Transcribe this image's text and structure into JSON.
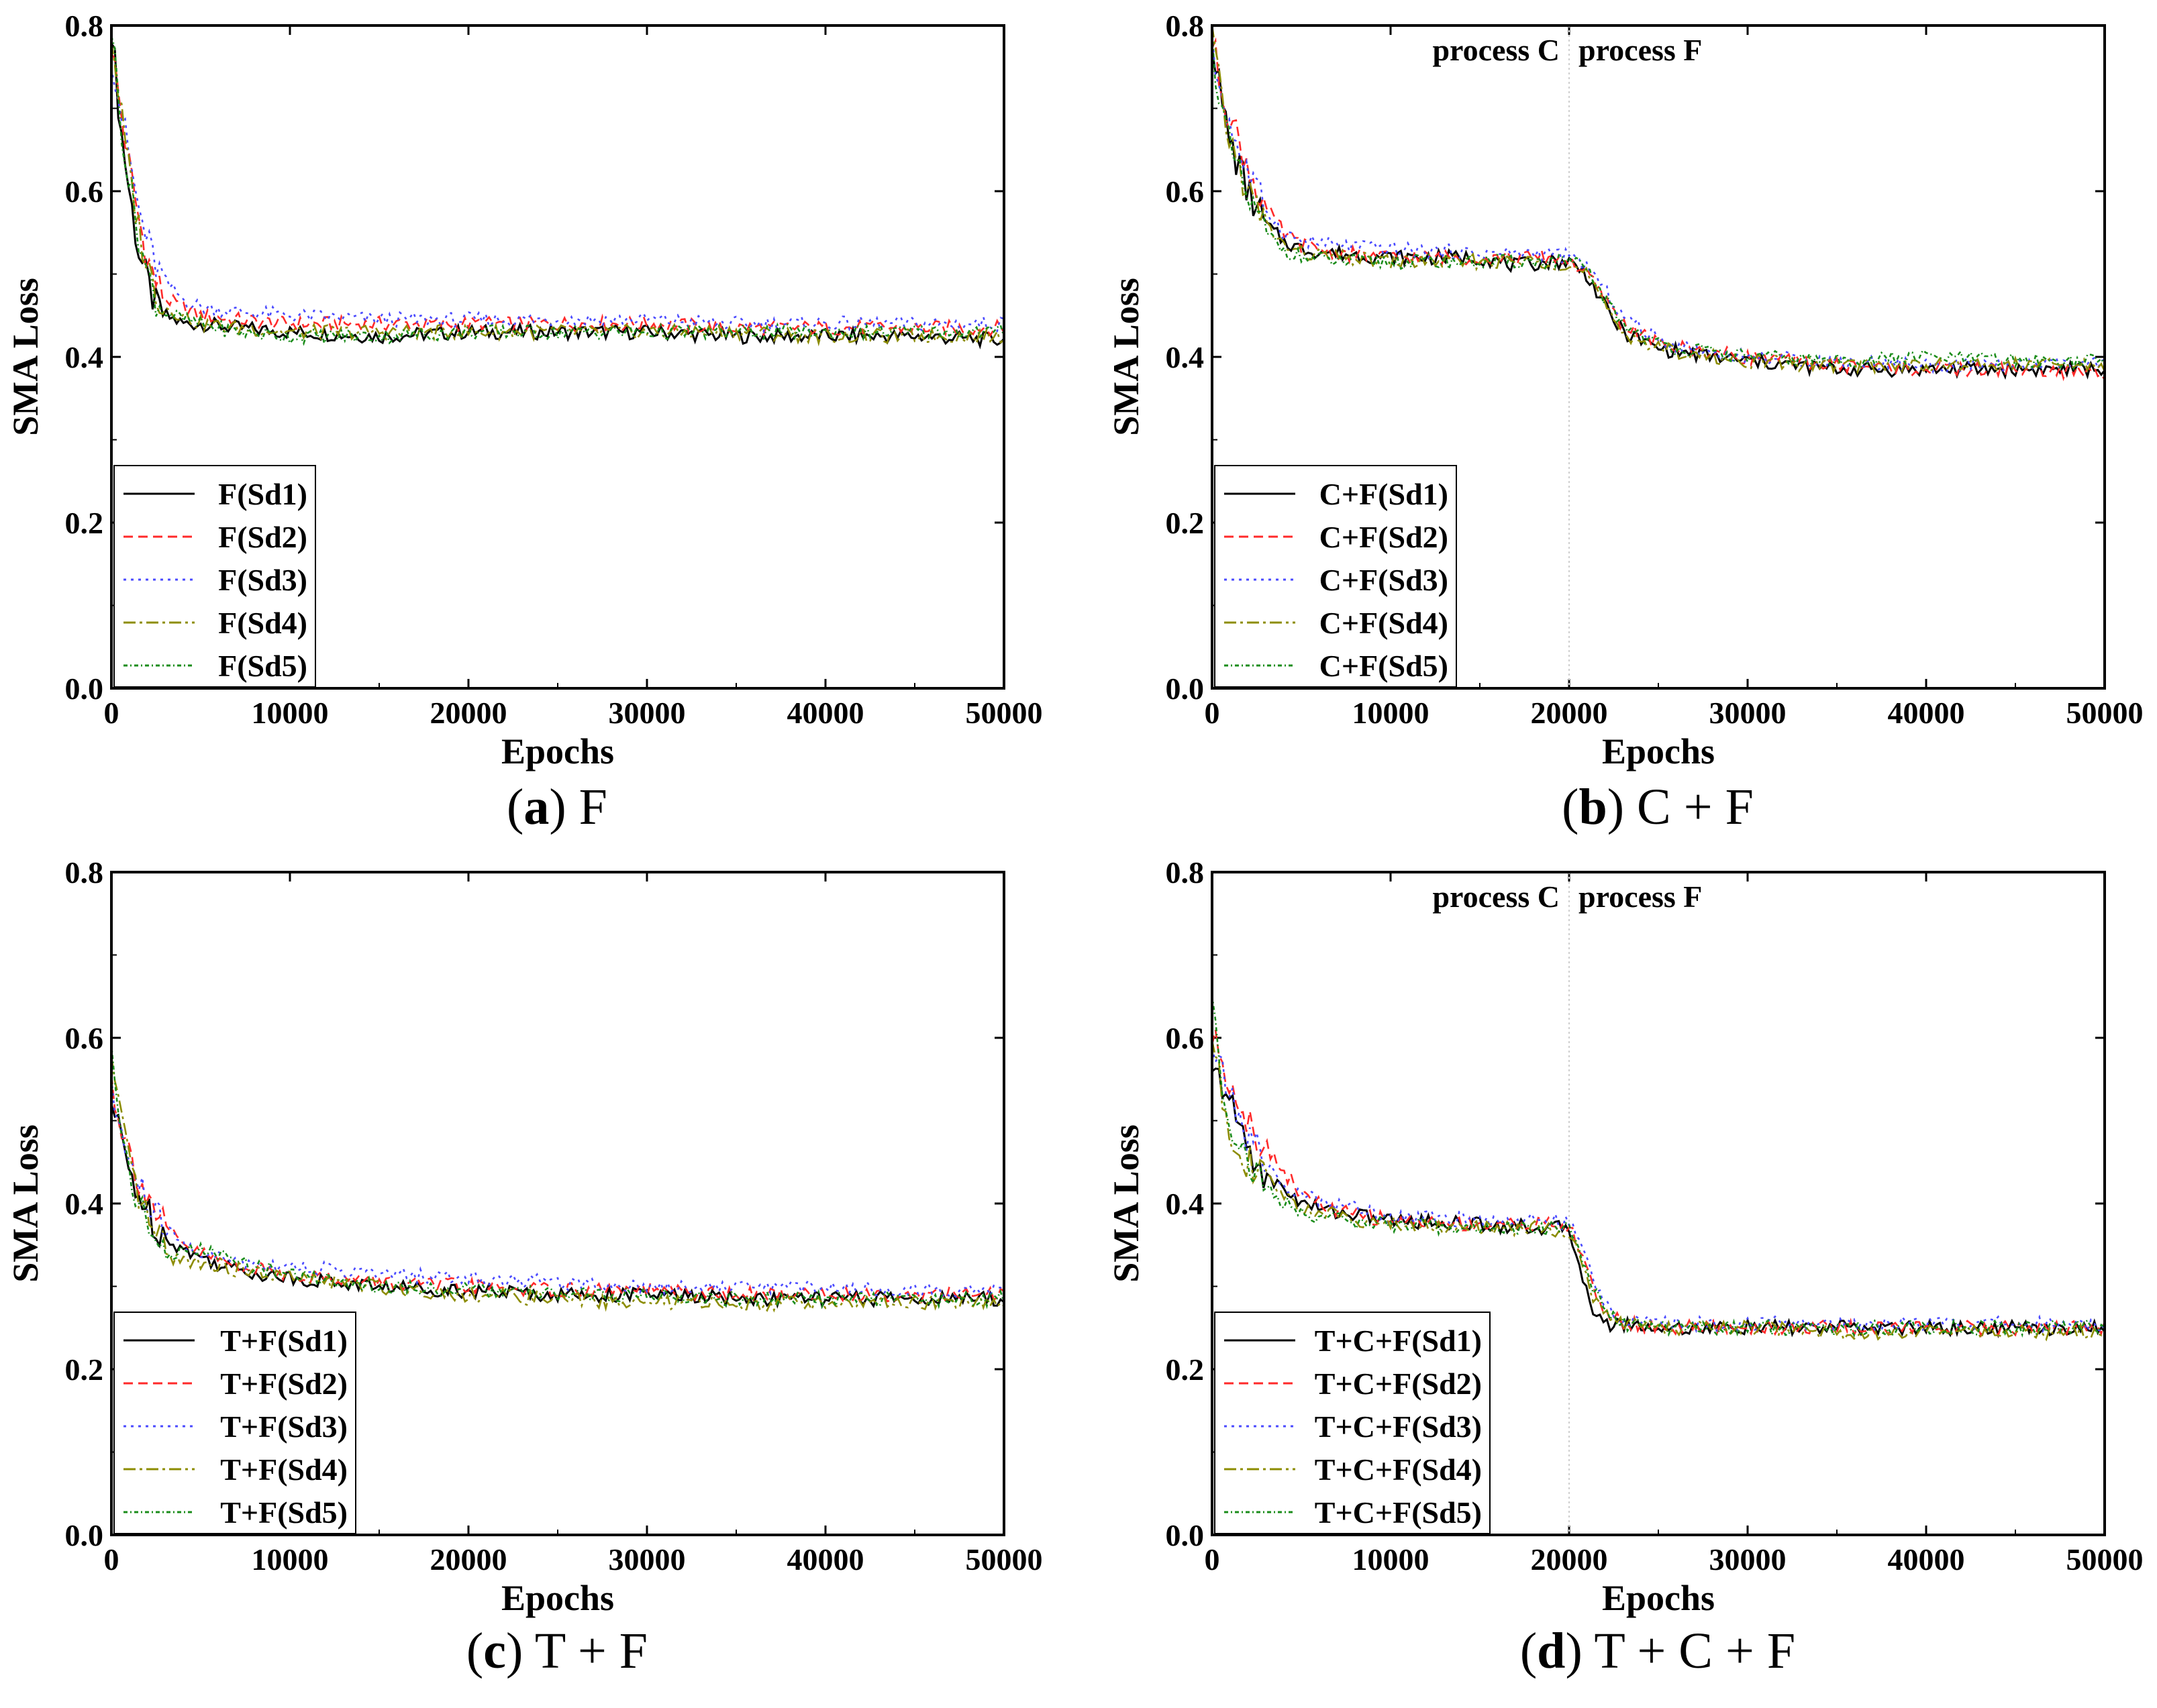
{
  "figure": {
    "colors": {
      "Sd1": "#000000",
      "Sd2": "#ff2a2a",
      "Sd3": "#4a4aff",
      "Sd4": "#8c8c00",
      "Sd5": "#1a8c1a"
    }
  },
  "chart_data": [
    {
      "type": "line",
      "panel_letter": "a",
      "caption_text": "F",
      "xlabel": "Epochs",
      "ylabel": "SMA Loss",
      "xlim": [
        0,
        50000
      ],
      "ylim": [
        0.0,
        0.8
      ],
      "xticks": [
        "0",
        "10000",
        "20000",
        "30000",
        "40000",
        "50000"
      ],
      "yticks": [
        "0.0",
        "0.2",
        "0.4",
        "0.6",
        "0.8"
      ],
      "legend_position": "bottom-left",
      "annotations": [],
      "series": [
        {
          "name": "F(Sd1)",
          "x": [
            0,
            500,
            1000,
            1500,
            2000,
            2500,
            3000,
            4000,
            5000,
            7000,
            10000,
            15000,
            20000,
            25000,
            30000,
            35000,
            40000,
            45000,
            50000
          ],
          "values": [
            0.8,
            0.68,
            0.6,
            0.53,
            0.49,
            0.46,
            0.45,
            0.44,
            0.44,
            0.435,
            0.43,
            0.425,
            0.43,
            0.43,
            0.43,
            0.425,
            0.425,
            0.425,
            0.42
          ]
        },
        {
          "name": "F(Sd2)",
          "x": [
            0,
            500,
            1000,
            1500,
            2000,
            2500,
            3000,
            4000,
            5000,
            7000,
            10000,
            15000,
            20000,
            25000,
            30000,
            35000,
            40000,
            45000,
            50000
          ],
          "values": [
            0.78,
            0.7,
            0.63,
            0.57,
            0.52,
            0.49,
            0.47,
            0.46,
            0.45,
            0.445,
            0.44,
            0.44,
            0.44,
            0.44,
            0.44,
            0.435,
            0.435,
            0.435,
            0.435
          ]
        },
        {
          "name": "F(Sd3)",
          "x": [
            0,
            500,
            1000,
            1500,
            2000,
            2500,
            3000,
            4000,
            5000,
            7000,
            10000,
            15000,
            20000,
            25000,
            30000,
            35000,
            40000,
            45000,
            50000
          ],
          "values": [
            0.77,
            0.7,
            0.64,
            0.58,
            0.54,
            0.51,
            0.49,
            0.47,
            0.46,
            0.455,
            0.45,
            0.445,
            0.445,
            0.445,
            0.445,
            0.44,
            0.44,
            0.44,
            0.44
          ]
        },
        {
          "name": "F(Sd4)",
          "x": [
            0,
            500,
            1000,
            1500,
            2000,
            2500,
            3000,
            4000,
            5000,
            7000,
            10000,
            15000,
            20000,
            25000,
            30000,
            35000,
            40000,
            45000,
            50000
          ],
          "values": [
            0.79,
            0.7,
            0.62,
            0.56,
            0.51,
            0.48,
            0.46,
            0.45,
            0.44,
            0.435,
            0.43,
            0.43,
            0.43,
            0.43,
            0.43,
            0.43,
            0.425,
            0.425,
            0.425
          ]
        },
        {
          "name": "F(Sd5)",
          "x": [
            0,
            500,
            1000,
            1500,
            2000,
            2500,
            3000,
            4000,
            5000,
            7000,
            10000,
            15000,
            20000,
            25000,
            30000,
            35000,
            40000,
            45000,
            50000
          ],
          "values": [
            0.8,
            0.69,
            0.61,
            0.55,
            0.5,
            0.47,
            0.455,
            0.445,
            0.44,
            0.43,
            0.425,
            0.425,
            0.43,
            0.43,
            0.43,
            0.43,
            0.43,
            0.43,
            0.43
          ]
        }
      ]
    },
    {
      "type": "line",
      "panel_letter": "b",
      "caption_text": "C + F",
      "xlabel": "Epochs",
      "ylabel": "SMA Loss",
      "xlim": [
        0,
        50000
      ],
      "ylim": [
        0.0,
        0.8
      ],
      "xticks": [
        "0",
        "10000",
        "20000",
        "30000",
        "40000",
        "50000"
      ],
      "yticks": [
        "0.0",
        "0.2",
        "0.4",
        "0.6",
        "0.8"
      ],
      "legend_position": "bottom-left",
      "divider_x": 20000,
      "annotations": [
        "process C",
        "process F"
      ],
      "series": [
        {
          "name": "C+F(Sd1)",
          "x": [
            0,
            500,
            1000,
            2000,
            3000,
            4000,
            5000,
            7000,
            10000,
            15000,
            17000,
            19000,
            20000,
            21000,
            22000,
            23000,
            25000,
            28000,
            30000,
            35000,
            40000,
            45000,
            50000
          ],
          "values": [
            0.79,
            0.71,
            0.66,
            0.6,
            0.56,
            0.54,
            0.53,
            0.525,
            0.52,
            0.52,
            0.51,
            0.515,
            0.515,
            0.5,
            0.46,
            0.43,
            0.41,
            0.4,
            0.395,
            0.385,
            0.385,
            0.385,
            0.385
          ]
        },
        {
          "name": "C+F(Sd2)",
          "x": [
            0,
            500,
            1000,
            2000,
            3000,
            4000,
            5000,
            7000,
            10000,
            15000,
            17000,
            19000,
            20000,
            21000,
            22000,
            23000,
            25000,
            28000,
            30000,
            35000,
            40000,
            45000,
            50000
          ],
          "values": [
            0.78,
            0.73,
            0.69,
            0.63,
            0.58,
            0.55,
            0.535,
            0.525,
            0.52,
            0.52,
            0.52,
            0.52,
            0.515,
            0.5,
            0.47,
            0.44,
            0.415,
            0.405,
            0.4,
            0.39,
            0.385,
            0.385,
            0.38
          ]
        },
        {
          "name": "C+F(Sd3)",
          "x": [
            0,
            500,
            1000,
            2000,
            3000,
            4000,
            5000,
            7000,
            10000,
            15000,
            17000,
            19000,
            20000,
            21000,
            22000,
            23000,
            25000,
            28000,
            30000,
            35000,
            40000,
            45000,
            50000
          ],
          "values": [
            0.77,
            0.72,
            0.68,
            0.62,
            0.58,
            0.55,
            0.54,
            0.535,
            0.53,
            0.525,
            0.525,
            0.525,
            0.52,
            0.51,
            0.48,
            0.45,
            0.42,
            0.405,
            0.4,
            0.395,
            0.39,
            0.39,
            0.39
          ]
        },
        {
          "name": "C+F(Sd4)",
          "x": [
            0,
            500,
            1000,
            2000,
            3000,
            4000,
            5000,
            7000,
            10000,
            15000,
            17000,
            19000,
            20000,
            21000,
            22000,
            23000,
            25000,
            28000,
            30000,
            35000,
            40000,
            45000,
            50000
          ],
          "values": [
            0.79,
            0.71,
            0.66,
            0.6,
            0.56,
            0.535,
            0.525,
            0.52,
            0.515,
            0.515,
            0.515,
            0.515,
            0.51,
            0.5,
            0.46,
            0.43,
            0.41,
            0.4,
            0.395,
            0.39,
            0.39,
            0.39,
            0.39
          ]
        },
        {
          "name": "C+F(Sd5)",
          "x": [
            0,
            500,
            1000,
            2000,
            3000,
            4000,
            5000,
            7000,
            10000,
            15000,
            17000,
            19000,
            20000,
            21000,
            22000,
            23000,
            25000,
            28000,
            30000,
            35000,
            40000,
            45000,
            50000
          ],
          "values": [
            0.78,
            0.7,
            0.65,
            0.59,
            0.55,
            0.53,
            0.52,
            0.515,
            0.515,
            0.515,
            0.515,
            0.515,
            0.515,
            0.505,
            0.47,
            0.44,
            0.415,
            0.405,
            0.4,
            0.395,
            0.4,
            0.395,
            0.395
          ]
        }
      ]
    },
    {
      "type": "line",
      "panel_letter": "c",
      "caption_text": "T + F",
      "xlabel": "Epochs",
      "ylabel": "SMA Loss",
      "xlim": [
        0,
        50000
      ],
      "ylim": [
        0.0,
        0.8
      ],
      "xticks": [
        "0",
        "10000",
        "20000",
        "30000",
        "40000",
        "50000"
      ],
      "yticks": [
        "0.0",
        "0.2",
        "0.4",
        "0.6",
        "0.8"
      ],
      "legend_position": "bottom-left",
      "annotations": [],
      "series": [
        {
          "name": "T+F(Sd1)",
          "x": [
            0,
            500,
            1000,
            2000,
            3000,
            4000,
            5000,
            7000,
            10000,
            15000,
            20000,
            25000,
            30000,
            35000,
            40000,
            45000,
            50000
          ],
          "values": [
            0.52,
            0.48,
            0.44,
            0.39,
            0.36,
            0.345,
            0.335,
            0.32,
            0.31,
            0.3,
            0.295,
            0.29,
            0.29,
            0.285,
            0.285,
            0.285,
            0.285
          ]
        },
        {
          "name": "T+F(Sd2)",
          "x": [
            0,
            500,
            1000,
            2000,
            3000,
            4000,
            5000,
            7000,
            10000,
            15000,
            20000,
            25000,
            30000,
            35000,
            40000,
            45000,
            50000
          ],
          "values": [
            0.55,
            0.5,
            0.46,
            0.41,
            0.37,
            0.35,
            0.34,
            0.325,
            0.315,
            0.305,
            0.3,
            0.295,
            0.295,
            0.29,
            0.29,
            0.29,
            0.29
          ]
        },
        {
          "name": "T+F(Sd3)",
          "x": [
            0,
            500,
            1000,
            2000,
            3000,
            4000,
            5000,
            7000,
            10000,
            15000,
            20000,
            25000,
            30000,
            35000,
            40000,
            45000,
            50000
          ],
          "values": [
            0.53,
            0.49,
            0.45,
            0.4,
            0.37,
            0.35,
            0.34,
            0.33,
            0.325,
            0.315,
            0.31,
            0.305,
            0.3,
            0.3,
            0.3,
            0.295,
            0.295
          ]
        },
        {
          "name": "T+F(Sd4)",
          "x": [
            0,
            500,
            1000,
            2000,
            3000,
            4000,
            5000,
            7000,
            10000,
            15000,
            20000,
            25000,
            30000,
            35000,
            40000,
            45000,
            50000
          ],
          "values": [
            0.57,
            0.5,
            0.44,
            0.38,
            0.34,
            0.33,
            0.33,
            0.32,
            0.31,
            0.3,
            0.29,
            0.285,
            0.28,
            0.28,
            0.28,
            0.28,
            0.28
          ]
        },
        {
          "name": "T+F(Sd5)",
          "x": [
            0,
            500,
            1000,
            2000,
            3000,
            4000,
            5000,
            7000,
            10000,
            15000,
            20000,
            25000,
            30000,
            35000,
            40000,
            45000,
            50000
          ],
          "values": [
            0.58,
            0.5,
            0.44,
            0.37,
            0.34,
            0.34,
            0.345,
            0.33,
            0.315,
            0.3,
            0.295,
            0.29,
            0.29,
            0.285,
            0.285,
            0.285,
            0.285
          ]
        }
      ]
    },
    {
      "type": "line",
      "panel_letter": "d",
      "caption_text": "T + C + F",
      "xlabel": "Epochs",
      "ylabel": "SMA Loss",
      "xlim": [
        0,
        50000
      ],
      "ylim": [
        0.0,
        0.8
      ],
      "xticks": [
        "0",
        "10000",
        "20000",
        "30000",
        "40000",
        "50000"
      ],
      "yticks": [
        "0.0",
        "0.2",
        "0.4",
        "0.6",
        "0.8"
      ],
      "legend_position": "bottom-left",
      "divider_x": 20000,
      "annotations": [
        "process C",
        "process F"
      ],
      "series": [
        {
          "name": "T+C+F(Sd1)",
          "x": [
            0,
            500,
            1000,
            2000,
            3000,
            4000,
            5000,
            7000,
            10000,
            15000,
            19000,
            20000,
            20500,
            21000,
            21500,
            22000,
            23000,
            25000,
            30000,
            35000,
            40000,
            45000,
            50000
          ],
          "values": [
            0.55,
            0.55,
            0.52,
            0.47,
            0.43,
            0.42,
            0.4,
            0.39,
            0.38,
            0.375,
            0.37,
            0.37,
            0.33,
            0.3,
            0.26,
            0.255,
            0.255,
            0.25,
            0.25,
            0.25,
            0.25,
            0.25,
            0.25
          ]
        },
        {
          "name": "T+C+F(Sd2)",
          "x": [
            0,
            500,
            1000,
            2000,
            3000,
            4000,
            5000,
            7000,
            10000,
            15000,
            19000,
            20000,
            20500,
            21000,
            21500,
            22000,
            23000,
            25000,
            30000,
            35000,
            40000,
            45000,
            50000
          ],
          "values": [
            0.6,
            0.58,
            0.55,
            0.5,
            0.47,
            0.44,
            0.41,
            0.39,
            0.38,
            0.375,
            0.375,
            0.37,
            0.35,
            0.32,
            0.29,
            0.27,
            0.255,
            0.25,
            0.25,
            0.25,
            0.25,
            0.25,
            0.25
          ]
        },
        {
          "name": "T+C+F(Sd3)",
          "x": [
            0,
            500,
            1000,
            2000,
            3000,
            4000,
            5000,
            7000,
            10000,
            15000,
            19000,
            20000,
            20500,
            21000,
            21500,
            22000,
            23000,
            25000,
            30000,
            35000,
            40000,
            45000,
            50000
          ],
          "values": [
            0.59,
            0.56,
            0.53,
            0.48,
            0.45,
            0.42,
            0.41,
            0.4,
            0.385,
            0.38,
            0.38,
            0.375,
            0.36,
            0.33,
            0.3,
            0.28,
            0.26,
            0.255,
            0.255,
            0.255,
            0.255,
            0.255,
            0.255
          ]
        },
        {
          "name": "T+C+F(Sd4)",
          "x": [
            0,
            500,
            1000,
            2000,
            3000,
            4000,
            5000,
            7000,
            10000,
            15000,
            19000,
            20000,
            20500,
            21000,
            21500,
            22000,
            23000,
            25000,
            30000,
            35000,
            40000,
            45000,
            50000
          ],
          "values": [
            0.6,
            0.54,
            0.49,
            0.45,
            0.43,
            0.41,
            0.395,
            0.385,
            0.375,
            0.37,
            0.37,
            0.365,
            0.34,
            0.31,
            0.28,
            0.265,
            0.255,
            0.25,
            0.25,
            0.245,
            0.245,
            0.245,
            0.245
          ]
        },
        {
          "name": "T+C+F(Sd5)",
          "x": [
            0,
            500,
            1000,
            2000,
            3000,
            4000,
            5000,
            7000,
            10000,
            15000,
            19000,
            20000,
            20500,
            21000,
            21500,
            22000,
            23000,
            25000,
            30000,
            35000,
            40000,
            45000,
            50000
          ],
          "values": [
            0.66,
            0.55,
            0.5,
            0.45,
            0.42,
            0.4,
            0.39,
            0.38,
            0.375,
            0.37,
            0.37,
            0.37,
            0.35,
            0.32,
            0.29,
            0.27,
            0.255,
            0.25,
            0.25,
            0.25,
            0.25,
            0.25,
            0.25
          ]
        }
      ]
    }
  ]
}
